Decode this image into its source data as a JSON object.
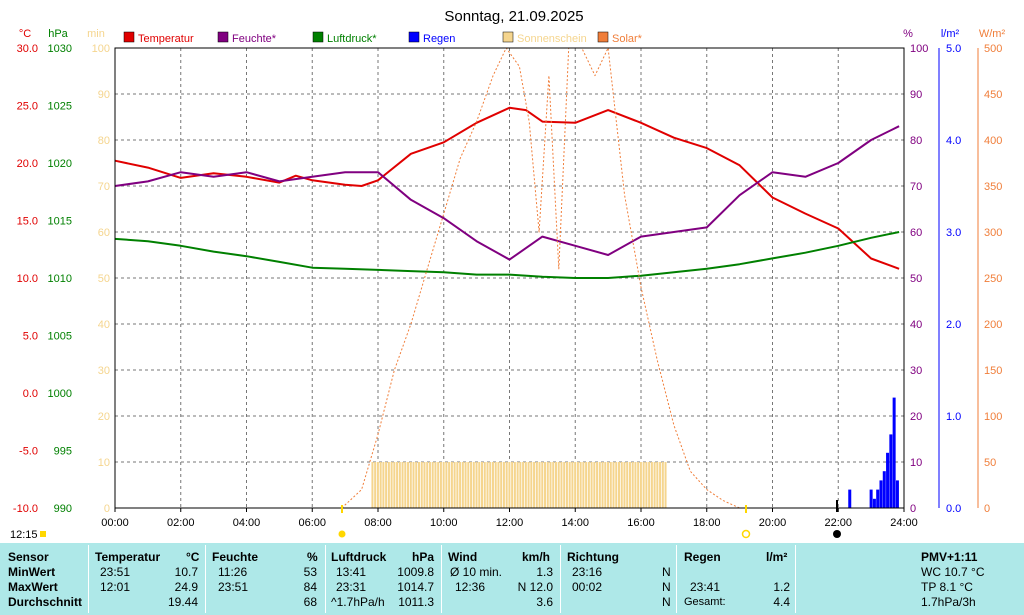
{
  "title": "Sonntag, 21.09.2025",
  "time_now": "12:15",
  "axis_units": {
    "temp": "°C",
    "pressure": "hPa",
    "sun": "min",
    "humidity": "%",
    "rain": "l/m²",
    "solar": "W/m²"
  },
  "colors": {
    "temp": "#e00000",
    "humidity": "#800080",
    "pressure": "#008000",
    "rain": "#0000ff",
    "sun": "#f5d58e",
    "solar": "#f07e3a",
    "grid": "#777777",
    "stats_bg": "#aee8e8"
  },
  "legend": [
    {
      "label": "Temperatur",
      "color": "#e00000"
    },
    {
      "label": "Feuchte*",
      "color": "#800080"
    },
    {
      "label": "Luftdruck*",
      "color": "#008000"
    },
    {
      "label": "Regen",
      "color": "#0000ff"
    },
    {
      "label": "Sonnenschein",
      "color": "#f5d58e"
    },
    {
      "label": "Solar*",
      "color": "#f07e3a"
    }
  ],
  "chart_data": {
    "type": "line",
    "title": "Sonntag, 21.09.2025",
    "x_range": [
      0,
      24
    ],
    "x_ticks": [
      "00:00",
      "02:00",
      "04:00",
      "06:00",
      "08:00",
      "10:00",
      "12:00",
      "14:00",
      "16:00",
      "18:00",
      "20:00",
      "22:00",
      "24:00"
    ],
    "axes": {
      "temp": {
        "unit": "°C",
        "range": [
          -10,
          30
        ],
        "ticks": [
          "30.0",
          "25.0",
          "20.0",
          "15.0",
          "10.0",
          "5.0",
          "0.0",
          "-5.0",
          "-10.0"
        ]
      },
      "pressure": {
        "unit": "hPa",
        "range": [
          990,
          1030
        ],
        "ticks": [
          "1030",
          "1025",
          "1020",
          "1015",
          "1010",
          "1005",
          "1000",
          "995",
          "990"
        ]
      },
      "sun": {
        "unit": "min",
        "range": [
          0,
          100
        ],
        "ticks": [
          "100",
          "90",
          "80",
          "70",
          "60",
          "50",
          "40",
          "30",
          "20",
          "10",
          "0"
        ]
      },
      "humidity": {
        "unit": "%",
        "range": [
          0,
          100
        ],
        "ticks": [
          "100",
          "90",
          "80",
          "70",
          "60",
          "50",
          "40",
          "30",
          "20",
          "10",
          "0"
        ]
      },
      "rain": {
        "unit": "l/m²",
        "range": [
          0,
          5
        ],
        "ticks": [
          "5.0",
          "4.0",
          "3.0",
          "2.0",
          "1.0",
          "0.0"
        ]
      },
      "solar": {
        "unit": "W/m²",
        "range": [
          0,
          500
        ],
        "ticks": [
          "500",
          "450",
          "400",
          "350",
          "300",
          "250",
          "200",
          "150",
          "100",
          "50",
          "0"
        ]
      }
    },
    "series": [
      {
        "name": "Temperatur",
        "axis": "temp",
        "x": [
          0,
          1,
          2,
          3,
          4,
          5,
          5.5,
          6,
          7,
          7.5,
          8,
          9,
          10,
          11,
          12,
          12.5,
          13,
          14,
          15,
          16,
          17,
          18,
          19,
          20,
          21,
          22,
          23,
          23.85
        ],
        "y": [
          20.2,
          19.6,
          18.7,
          19.1,
          18.8,
          18.3,
          18.9,
          18.5,
          18.1,
          18.0,
          18.5,
          20.8,
          21.8,
          23.5,
          24.8,
          24.6,
          23.6,
          23.5,
          24.6,
          23.5,
          22.2,
          21.3,
          19.8,
          17.0,
          15.6,
          14.3,
          11.7,
          10.8
        ]
      },
      {
        "name": "Feuchte*",
        "axis": "humidity",
        "x": [
          0,
          1,
          2,
          3,
          4,
          5,
          6,
          7,
          8,
          9,
          10,
          11,
          12,
          13,
          14,
          15,
          16,
          17,
          18,
          19,
          20,
          21,
          22,
          23,
          23.85
        ],
        "y": [
          70,
          71,
          73,
          72,
          73,
          71,
          72,
          73,
          73,
          67,
          63,
          58,
          54,
          59,
          57,
          55,
          59,
          60,
          61,
          68,
          73,
          72,
          75,
          80,
          83
        ]
      },
      {
        "name": "Luftdruck*",
        "axis": "pressure",
        "x": [
          0,
          1,
          2,
          3,
          4,
          5,
          6,
          7,
          8,
          9,
          10,
          11,
          12,
          13,
          14,
          15,
          16,
          17,
          18,
          19,
          20,
          21,
          22,
          23,
          23.85
        ],
        "y": [
          1013.4,
          1013.2,
          1012.8,
          1012.3,
          1011.9,
          1011.4,
          1010.9,
          1010.8,
          1010.7,
          1010.6,
          1010.5,
          1010.3,
          1010.3,
          1010.1,
          1010.0,
          1010.0,
          1010.2,
          1010.5,
          1010.8,
          1011.2,
          1011.7,
          1012.2,
          1012.8,
          1013.5,
          1014.0
        ]
      },
      {
        "name": "Solar*",
        "axis": "solar",
        "x": [
          6.9,
          7.5,
          8,
          8.5,
          9,
          9.5,
          10,
          10.5,
          11,
          11.5,
          11.9,
          12.3,
          12.6,
          12.9,
          13.2,
          13.5,
          13.8,
          14.2,
          14.6,
          15,
          15.5,
          16,
          16.5,
          17,
          17.5,
          18,
          18.5,
          19
        ],
        "y": [
          0,
          20,
          80,
          150,
          200,
          260,
          320,
          380,
          420,
          470,
          500,
          480,
          420,
          300,
          470,
          260,
          500,
          500,
          470,
          500,
          340,
          240,
          160,
          90,
          40,
          20,
          8,
          0
        ]
      }
    ],
    "sunshine_range": [
      7.8,
      16.8
    ],
    "sunshine_level": 10,
    "rain_bars": [
      {
        "x": 22.35,
        "y": 0.2
      },
      {
        "x": 23.0,
        "y": 0.2
      },
      {
        "x": 23.1,
        "y": 0.1
      },
      {
        "x": 23.2,
        "y": 0.2
      },
      {
        "x": 23.3,
        "y": 0.3
      },
      {
        "x": 23.4,
        "y": 0.4
      },
      {
        "x": 23.5,
        "y": 0.6
      },
      {
        "x": 23.6,
        "y": 0.8
      },
      {
        "x": 23.7,
        "y": 1.2
      },
      {
        "x": 23.8,
        "y": 0.3
      }
    ]
  },
  "stats": {
    "sensor": {
      "header": "Sensor",
      "rows": [
        "MinWert",
        "MaxWert",
        "Durchschnitt"
      ]
    },
    "temperatur": {
      "header": "Temperatur",
      "unit": "°C",
      "times": [
        "23:51",
        "12:01",
        ""
      ],
      "values": [
        "10.7",
        "24.9",
        "19.44"
      ]
    },
    "feuchte": {
      "header": "Feuchte",
      "unit": "%",
      "times": [
        "11:26",
        "23:51",
        ""
      ],
      "values": [
        "53",
        "84",
        "68"
      ]
    },
    "luftdruck": {
      "header": "Luftdruck",
      "unit": "hPa",
      "times": [
        "13:41",
        "23:31",
        "^1.7hPa/h"
      ],
      "values": [
        "1009.8",
        "1014.7",
        "1011.3"
      ]
    },
    "wind": {
      "header": "Wind",
      "unit": "km/h",
      "times": [
        "Ø 10 min.",
        "12:36",
        ""
      ],
      "values": [
        "1.3",
        "N 12.0",
        "3.6"
      ]
    },
    "richtung": {
      "header": "Richtung",
      "times": [
        "23:16",
        "00:02",
        ""
      ],
      "values": [
        "N",
        "N",
        "N"
      ]
    },
    "regen": {
      "header": "Regen",
      "unit": "l/m²",
      "times": [
        "",
        "23:41",
        "Gesamt:"
      ],
      "values": [
        "",
        "1.2",
        "4.4"
      ]
    },
    "pmv": {
      "header": "PMV+1:11",
      "rows": [
        "WC 10.7 °C",
        "TP 8.1 °C",
        "1.7hPa/3h"
      ]
    }
  }
}
